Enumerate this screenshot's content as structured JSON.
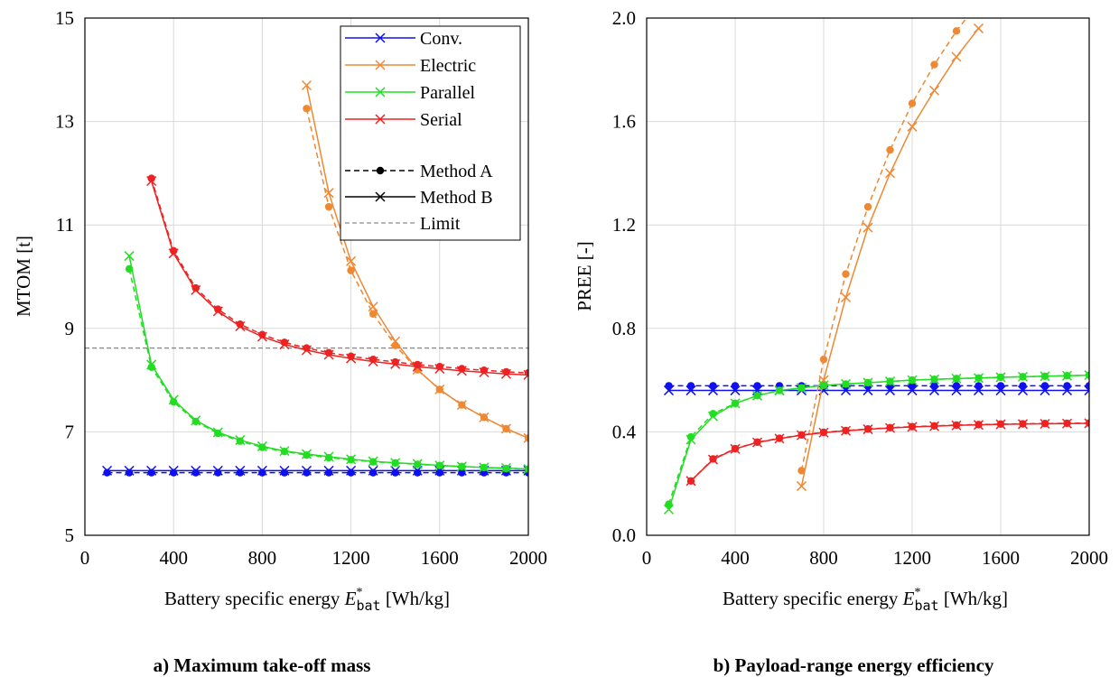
{
  "chart_data": [
    {
      "type": "line",
      "caption": "a) Maximum take-off mass",
      "xlabel": "Battery specific energy",
      "xlabel_symbol": "E",
      "xlabel_sup": "*",
      "xlabel_sub": "bat",
      "xlabel_unit": "[Wh/kg]",
      "ylabel": "MTOM [t]",
      "xlim": [
        0,
        2000
      ],
      "ylim": [
        5,
        15
      ],
      "xticks": [
        "0",
        "400",
        "800",
        "1200",
        "1600",
        "2000"
      ],
      "yticks": [
        "5",
        "7",
        "9",
        "11",
        "13",
        "15"
      ],
      "grid": true,
      "legend_position": "top-right",
      "limit": 8.62,
      "series": [
        {
          "name": "Conv.",
          "color": "#1010ee",
          "x": [
            100,
            200,
            300,
            400,
            500,
            600,
            700,
            800,
            900,
            1000,
            1100,
            1200,
            1300,
            1400,
            1500,
            1600,
            1700,
            1800,
            1900,
            2000
          ],
          "method_a": [
            6.21,
            6.21,
            6.21,
            6.21,
            6.21,
            6.21,
            6.21,
            6.21,
            6.21,
            6.21,
            6.21,
            6.21,
            6.21,
            6.21,
            6.21,
            6.21,
            6.21,
            6.21,
            6.21,
            6.21
          ],
          "method_b": [
            6.25,
            6.25,
            6.25,
            6.25,
            6.25,
            6.25,
            6.25,
            6.25,
            6.25,
            6.25,
            6.25,
            6.25,
            6.25,
            6.25,
            6.25,
            6.25,
            6.25,
            6.25,
            6.25,
            6.25
          ]
        },
        {
          "name": "Electric",
          "color": "#ee8833",
          "x": [
            1000,
            1100,
            1200,
            1300,
            1400,
            1500,
            1600,
            1700,
            1800,
            1900,
            2000
          ],
          "method_a": [
            13.25,
            11.35,
            10.12,
            9.28,
            8.67,
            8.2,
            7.82,
            7.52,
            7.28,
            7.06,
            6.88
          ],
          "method_b": [
            13.7,
            11.62,
            10.3,
            9.42,
            8.75,
            8.2,
            7.82,
            7.52,
            7.28,
            7.06,
            6.88
          ]
        },
        {
          "name": "Parallel",
          "color": "#22dd22",
          "x": [
            200,
            300,
            400,
            500,
            600,
            700,
            800,
            900,
            1000,
            1100,
            1200,
            1300,
            1400,
            1500,
            1600,
            1700,
            1800,
            1900,
            2000
          ],
          "method_a": [
            10.15,
            8.25,
            7.58,
            7.2,
            6.97,
            6.82,
            6.7,
            6.62,
            6.55,
            6.5,
            6.46,
            6.42,
            6.4,
            6.37,
            6.35,
            6.33,
            6.31,
            6.29,
            6.28
          ],
          "method_b": [
            10.4,
            8.3,
            7.62,
            7.22,
            6.99,
            6.84,
            6.72,
            6.63,
            6.57,
            6.52,
            6.47,
            6.43,
            6.4,
            6.38,
            6.35,
            6.33,
            6.31,
            6.3,
            6.28
          ]
        },
        {
          "name": "Serial",
          "color": "#ee2222",
          "x": [
            300,
            400,
            500,
            600,
            700,
            800,
            900,
            1000,
            1100,
            1200,
            1300,
            1400,
            1500,
            1600,
            1700,
            1800,
            1900,
            2000
          ],
          "method_a": [
            11.9,
            10.5,
            9.78,
            9.37,
            9.08,
            8.88,
            8.73,
            8.62,
            8.53,
            8.46,
            8.4,
            8.35,
            8.3,
            8.26,
            8.22,
            8.19,
            8.16,
            8.14
          ],
          "method_b": [
            11.85,
            10.45,
            9.74,
            9.33,
            9.04,
            8.84,
            8.69,
            8.58,
            8.49,
            8.42,
            8.36,
            8.31,
            8.26,
            8.22,
            8.18,
            8.15,
            8.12,
            8.1
          ]
        }
      ],
      "legend": {
        "series_names": [
          "Conv.",
          "Electric",
          "Parallel",
          "Serial"
        ],
        "method_a_label": "Method A",
        "method_b_label": "Method B",
        "limit_label": "Limit"
      }
    },
    {
      "type": "line",
      "caption": "b) Payload-range energy efficiency",
      "xlabel": "Battery specific energy",
      "xlabel_symbol": "E",
      "xlabel_sup": "*",
      "xlabel_sub": "bat",
      "xlabel_unit": "[Wh/kg]",
      "ylabel": "PREE [-]",
      "xlim": [
        0,
        2000
      ],
      "ylim": [
        0.0,
        2.0
      ],
      "xticks": [
        "0",
        "400",
        "800",
        "1200",
        "1600",
        "2000"
      ],
      "yticks": [
        "0.0",
        "0.4",
        "0.8",
        "1.2",
        "1.6",
        "2.0"
      ],
      "grid": true,
      "series": [
        {
          "name": "Conv.",
          "color": "#1010ee",
          "x": [
            100,
            200,
            300,
            400,
            500,
            600,
            700,
            800,
            900,
            1000,
            1100,
            1200,
            1300,
            1400,
            1500,
            1600,
            1700,
            1800,
            1900,
            2000
          ],
          "method_a": [
            0.578,
            0.578,
            0.578,
            0.578,
            0.578,
            0.578,
            0.578,
            0.578,
            0.578,
            0.578,
            0.578,
            0.578,
            0.578,
            0.578,
            0.578,
            0.578,
            0.578,
            0.578,
            0.578,
            0.578
          ],
          "method_b": [
            0.56,
            0.56,
            0.56,
            0.56,
            0.56,
            0.56,
            0.56,
            0.56,
            0.56,
            0.56,
            0.56,
            0.56,
            0.56,
            0.56,
            0.56,
            0.56,
            0.56,
            0.56,
            0.56,
            0.56
          ]
        },
        {
          "name": "Electric",
          "color": "#ee8833",
          "x": [
            700,
            800,
            900,
            1000,
            1100,
            1200,
            1300,
            1400,
            1500
          ],
          "method_a": [
            0.25,
            0.68,
            1.01,
            1.27,
            1.49,
            1.67,
            1.82,
            1.95,
            2.06
          ],
          "method_b": [
            0.19,
            0.6,
            0.92,
            1.19,
            1.4,
            1.58,
            1.72,
            1.85,
            1.96
          ]
        },
        {
          "name": "Parallel",
          "color": "#22dd22",
          "x": [
            100,
            200,
            300,
            400,
            500,
            600,
            700,
            800,
            900,
            1000,
            1100,
            1200,
            1300,
            1400,
            1500,
            1600,
            1700,
            1800,
            1900,
            2000
          ],
          "method_a": [
            0.12,
            0.38,
            0.47,
            0.51,
            0.54,
            0.56,
            0.57,
            0.58,
            0.585,
            0.59,
            0.595,
            0.6,
            0.603,
            0.606,
            0.608,
            0.611,
            0.613,
            0.615,
            0.617,
            0.619
          ],
          "method_b": [
            0.1,
            0.37,
            0.46,
            0.51,
            0.54,
            0.56,
            0.57,
            0.58,
            0.585,
            0.59,
            0.595,
            0.6,
            0.603,
            0.606,
            0.608,
            0.611,
            0.613,
            0.615,
            0.617,
            0.619
          ]
        },
        {
          "name": "Serial",
          "color": "#ee2222",
          "x": [
            200,
            300,
            400,
            500,
            600,
            700,
            800,
            900,
            1000,
            1100,
            1200,
            1300,
            1400,
            1500,
            1600,
            1700,
            1800,
            1900,
            2000
          ],
          "method_a": [
            0.21,
            0.295,
            0.335,
            0.36,
            0.375,
            0.388,
            0.398,
            0.405,
            0.411,
            0.416,
            0.42,
            0.423,
            0.426,
            0.428,
            0.43,
            0.431,
            0.432,
            0.433,
            0.434
          ],
          "method_b": [
            0.21,
            0.293,
            0.334,
            0.359,
            0.374,
            0.387,
            0.397,
            0.404,
            0.41,
            0.415,
            0.419,
            0.422,
            0.425,
            0.427,
            0.429,
            0.43,
            0.431,
            0.432,
            0.433
          ]
        }
      ]
    }
  ]
}
